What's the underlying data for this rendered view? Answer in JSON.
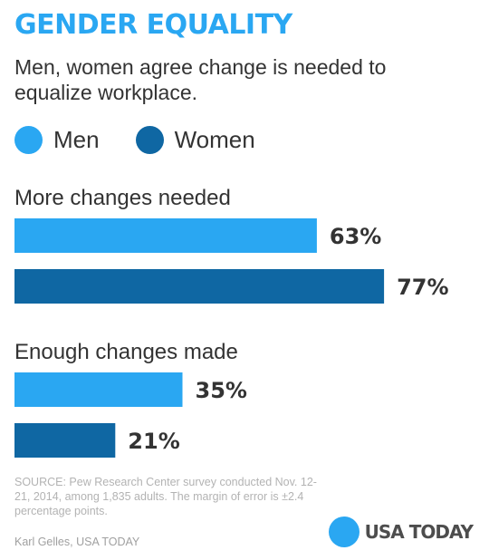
{
  "header": {
    "title": "GENDER EQUALITY",
    "subtitle": "Men, women agree change is needed to equalize workplace."
  },
  "colors": {
    "men": "#2aa7f2",
    "women": "#0f67a3",
    "title": "#2aa7f2",
    "logo_dot": "#2aa7f2"
  },
  "legend": {
    "items": [
      {
        "label": "Men",
        "color": "#2aa7f2"
      },
      {
        "label": "Women",
        "color": "#0f67a3"
      }
    ]
  },
  "chart_data": {
    "type": "bar",
    "orientation": "horizontal",
    "categories": [
      "More changes needed",
      "Enough changes made"
    ],
    "series": [
      {
        "name": "Men",
        "values": [
          63,
          35
        ],
        "color": "#2aa7f2"
      },
      {
        "name": "Women",
        "values": [
          77,
          21
        ],
        "color": "#0f67a3"
      }
    ],
    "value_suffix": "%",
    "xlim": [
      0,
      100
    ],
    "grid": false,
    "legend_position": "top-left"
  },
  "footer": {
    "source": "SOURCE: Pew Research Center survey conducted Nov. 12-21, 2014, among 1,835 adults. The margin of error is ±2.4 percentage points.",
    "byline": "Karl Gelles, USA TODAY",
    "logo_text": "USA TODAY"
  }
}
